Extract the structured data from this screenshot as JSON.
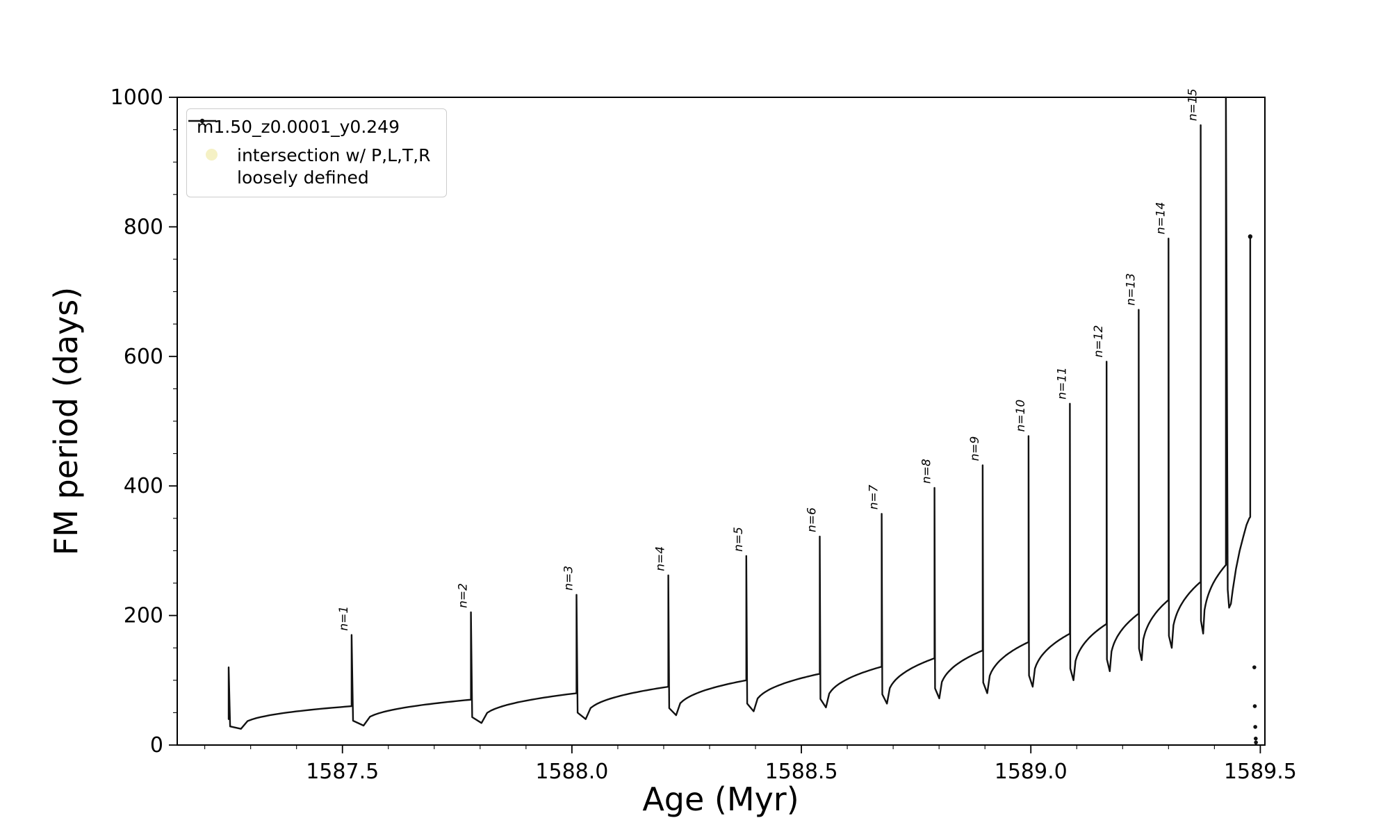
{
  "legend": {
    "series_label": "m1.50_z0.0001_y0.249",
    "intersection_label": "intersection w/ P,L,T,R\nloosely defined",
    "intersection_marker_color": "#f0e9a6",
    "series_color": "#000000"
  },
  "chart_data": {
    "type": "line",
    "title": "",
    "xlabel": "Age (Myr)",
    "ylabel": "FM period (days)",
    "xlim": [
      1587.14,
      1589.51
    ],
    "ylim": [
      0,
      1000
    ],
    "xticks": [
      1587.5,
      1588.0,
      1588.5,
      1589.0,
      1589.5
    ],
    "xtick_labels": [
      "1587.5",
      "1588.0",
      "1588.5",
      "1589.0",
      "1589.5"
    ],
    "yticks": [
      0,
      200,
      400,
      600,
      800,
      1000
    ],
    "ytick_labels": [
      "0",
      "200",
      "400",
      "600",
      "800",
      "1000"
    ],
    "x_minor_step": 0.1,
    "y_minor_step": 50,
    "grid": false,
    "legend_position": "upper left",
    "series_name": "m1.50_z0.0001_y0.249",
    "line_color": "#111111",
    "cycles": [
      {
        "x": 1587.252,
        "peak": 120,
        "plateau": 40,
        "dip": 25,
        "label": null
      },
      {
        "x": 1587.52,
        "peak": 170,
        "plateau": 60,
        "dip": 30,
        "label": "n=1"
      },
      {
        "x": 1587.78,
        "peak": 205,
        "plateau": 70,
        "dip": 34,
        "label": "n=2"
      },
      {
        "x": 1588.01,
        "peak": 232,
        "plateau": 80,
        "dip": 40,
        "label": "n=3"
      },
      {
        "x": 1588.21,
        "peak": 262,
        "plateau": 90,
        "dip": 46,
        "label": "n=4"
      },
      {
        "x": 1588.38,
        "peak": 292,
        "plateau": 100,
        "dip": 52,
        "label": "n=5"
      },
      {
        "x": 1588.54,
        "peak": 322,
        "plateau": 110,
        "dip": 58,
        "label": "n=6"
      },
      {
        "x": 1588.675,
        "peak": 357,
        "plateau": 121,
        "dip": 64,
        "label": "n=7"
      },
      {
        "x": 1588.79,
        "peak": 397,
        "plateau": 134,
        "dip": 72,
        "label": "n=8"
      },
      {
        "x": 1588.895,
        "peak": 432,
        "plateau": 146,
        "dip": 80,
        "label": "n=9"
      },
      {
        "x": 1588.995,
        "peak": 477,
        "plateau": 159,
        "dip": 90,
        "label": "n=10"
      },
      {
        "x": 1589.085,
        "peak": 527,
        "plateau": 172,
        "dip": 100,
        "label": "n=11"
      },
      {
        "x": 1589.165,
        "peak": 592,
        "plateau": 187,
        "dip": 114,
        "label": "n=12"
      },
      {
        "x": 1589.235,
        "peak": 672,
        "plateau": 203,
        "dip": 131,
        "label": "n=13"
      },
      {
        "x": 1589.3,
        "peak": 782,
        "plateau": 224,
        "dip": 150,
        "label": "n=14"
      },
      {
        "x": 1589.37,
        "peak": 957,
        "plateau": 252,
        "dip": 172,
        "label": "n=15"
      },
      {
        "x": 1589.425,
        "peak": 1000,
        "plateau": 278,
        "dip": 205,
        "label": null
      }
    ],
    "tail": [
      [
        1589.429,
        240
      ],
      [
        1589.432,
        212
      ],
      [
        1589.436,
        218
      ],
      [
        1589.44,
        240
      ],
      [
        1589.447,
        272
      ],
      [
        1589.455,
        300
      ],
      [
        1589.463,
        322
      ],
      [
        1589.47,
        340
      ],
      [
        1589.476,
        350
      ],
      [
        1589.478,
        352
      ],
      [
        1589.478,
        785
      ]
    ],
    "end_dots": [
      [
        1589.487,
        120
      ],
      [
        1589.488,
        60
      ],
      [
        1589.489,
        28
      ],
      [
        1589.49,
        10
      ],
      [
        1589.4905,
        4
      ]
    ]
  }
}
